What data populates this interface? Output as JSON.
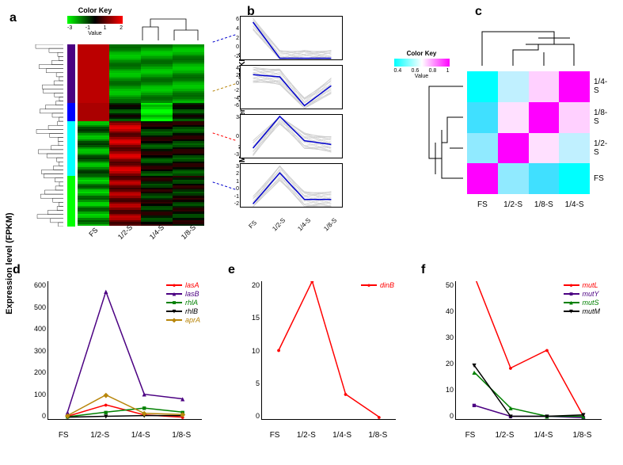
{
  "labels": {
    "a": "a",
    "b": "b",
    "c": "c",
    "d": "d",
    "e": "e",
    "f": "f"
  },
  "panel_a": {
    "colorkey_title": "Color Key",
    "value_label": "Value",
    "ticks": [
      "-3",
      "-1",
      "1",
      "2"
    ],
    "x": [
      "FS",
      "1/2-S",
      "1/4-S",
      "1/8-S"
    ],
    "cluster_colors": [
      "#4b0082",
      "#0000ff",
      "#00ffff",
      "#00ff00"
    ],
    "cluster_heights": [
      0.32,
      0.1,
      0.3,
      0.28
    ]
  },
  "panel_b": {
    "y_title": "Median-centered log₂ (FPKM)",
    "x": [
      "FS",
      "1/2-S",
      "1/4-S",
      "1/8-S"
    ],
    "connectors": [
      {
        "color": "#0000cd"
      },
      {
        "color": "#b8860b"
      },
      {
        "color": "#ff0000"
      },
      {
        "color": "#0000cd"
      }
    ],
    "profiles": [
      {
        "yticks": [
          "-2",
          "0",
          "2",
          "4",
          "6"
        ],
        "median": [
          5,
          -1.5,
          -1.5,
          -1.5
        ]
      },
      {
        "yticks": [
          "-6",
          "-4",
          "-2",
          "0",
          "2",
          "4"
        ],
        "median": [
          2,
          1.5,
          -5,
          -0.5
        ]
      },
      {
        "yticks": [
          "-3",
          "0",
          "3"
        ],
        "median": [
          -1.5,
          2.8,
          -0.5,
          -1
        ]
      },
      {
        "yticks": [
          "-2",
          "-1",
          "0",
          "1",
          "2",
          "3"
        ],
        "median": [
          -1.5,
          2,
          -1,
          -1
        ]
      }
    ]
  },
  "panel_c": {
    "colorkey_title": "Color Key",
    "value_label": "Value",
    "ticks": [
      "0.4",
      "0.6",
      "0.8",
      "1"
    ],
    "x": [
      "FS",
      "1/2-S",
      "1/8-S",
      "1/4-S"
    ],
    "y": [
      "1/4-S",
      "1/8-S",
      "1/2-S",
      "FS"
    ],
    "grid": [
      [
        "#00ffff",
        "#c0f0ff",
        "#ffd0ff",
        "#ff00ff"
      ],
      [
        "#40e0ff",
        "#ffe0ff",
        "#ff00ff",
        "#ffd0ff"
      ],
      [
        "#90eaff",
        "#ff00ff",
        "#ffe0ff",
        "#c0f0ff"
      ],
      [
        "#ff00ff",
        "#90eaff",
        "#40e0ff",
        "#00ffff"
      ]
    ]
  },
  "panel_d": {
    "y_label": "Expression level (FPKM)",
    "y_max": 600,
    "y_ticks": [
      0,
      100,
      200,
      300,
      400,
      500,
      600
    ],
    "x": [
      "FS",
      "1/2-S",
      "1/4-S",
      "1/8-S"
    ],
    "series": [
      {
        "name": "lasA",
        "color": "#ff0000",
        "marker": "●",
        "data": [
          12,
          62,
          18,
          8
        ]
      },
      {
        "name": "lasB",
        "color": "#4b0082",
        "marker": "▲",
        "data": [
          30,
          555,
          108,
          88
        ]
      },
      {
        "name": "rhlA",
        "color": "#008000",
        "marker": "■",
        "data": [
          10,
          30,
          48,
          30
        ]
      },
      {
        "name": "rhlB",
        "color": "#000000",
        "marker": "▼",
        "data": [
          8,
          12,
          15,
          15
        ]
      },
      {
        "name": "aprA",
        "color": "#b8860b",
        "marker": "◆",
        "data": [
          15,
          105,
          25,
          20
        ]
      }
    ]
  },
  "panel_e": {
    "y_max": 20,
    "y_ticks": [
      0,
      5,
      10,
      15,
      20
    ],
    "x": [
      "FS",
      "1/2-S",
      "1/4-S",
      "1/8-S"
    ],
    "series": [
      {
        "name": "dinB",
        "color": "#ff0000",
        "marker": "●",
        "data": [
          10,
          20,
          3.6,
          0.3
        ]
      }
    ]
  },
  "panel_f": {
    "y_max": 50,
    "y_ticks": [
      0,
      10,
      20,
      30,
      40,
      50
    ],
    "x": [
      "FS",
      "1/2-S",
      "1/4-S",
      "1/8-S"
    ],
    "series": [
      {
        "name": "mutL",
        "color": "#ff0000",
        "marker": "●",
        "data": [
          52,
          18.5,
          25,
          1
        ]
      },
      {
        "name": "mutY",
        "color": "#4b0082",
        "marker": "■",
        "data": [
          5,
          1,
          1,
          0.5
        ]
      },
      {
        "name": "mutS",
        "color": "#008000",
        "marker": "▲",
        "data": [
          17,
          4,
          1,
          1
        ]
      },
      {
        "name": "mutM",
        "color": "#000000",
        "marker": "▼",
        "data": [
          19.5,
          1,
          1,
          1.5
        ]
      }
    ]
  }
}
